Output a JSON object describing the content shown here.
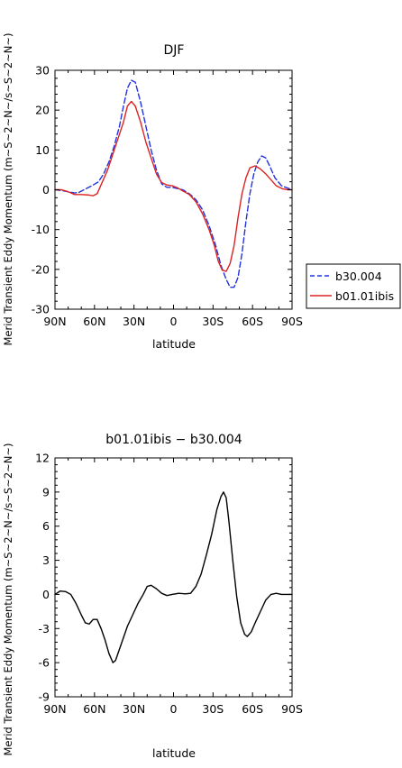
{
  "chart_data": [
    {
      "type": "line",
      "title": "DJF",
      "xlabel": "latitude",
      "ylabel": "Merid Transient Eddy Momentum (m~S~2~N~/s~S~2~N~)",
      "x_unit": "degrees latitude (positive = N, negative = S)",
      "xlim": [
        90,
        -90
      ],
      "ylim": [
        -30,
        30
      ],
      "xticks": [
        90,
        60,
        30,
        0,
        -30,
        -60,
        -90
      ],
      "xtick_labels": [
        "90N",
        "60N",
        "30N",
        "0",
        "30S",
        "60S",
        "90S"
      ],
      "yticks": [
        -30,
        -20,
        -10,
        0,
        10,
        20,
        30
      ],
      "ytick_labels": [
        "-30",
        "-20",
        "-10",
        "0",
        "10",
        "20",
        "30"
      ],
      "legend_position": "right",
      "series": [
        {
          "name": "b30.004",
          "color": "#2233dd",
          "style": "dashed",
          "points": [
            [
              90,
              0
            ],
            [
              85,
              -0.2
            ],
            [
              80,
              -0.5
            ],
            [
              75,
              -0.8
            ],
            [
              72,
              -0.7
            ],
            [
              68,
              0
            ],
            [
              62,
              1
            ],
            [
              57,
              2
            ],
            [
              53,
              4
            ],
            [
              49,
              7
            ],
            [
              45,
              11
            ],
            [
              41,
              16
            ],
            [
              38,
              21
            ],
            [
              35,
              25.5
            ],
            [
              32,
              27.5
            ],
            [
              29,
              27
            ],
            [
              25,
              22
            ],
            [
              21,
              16
            ],
            [
              17,
              10
            ],
            [
              13,
              5
            ],
            [
              9,
              1.5
            ],
            [
              5,
              0.6
            ],
            [
              1,
              0.6
            ],
            [
              -3,
              0.3
            ],
            [
              -7,
              0
            ],
            [
              -12,
              -1
            ],
            [
              -17,
              -2.5
            ],
            [
              -22,
              -5
            ],
            [
              -27,
              -9
            ],
            [
              -32,
              -14
            ],
            [
              -36,
              -19
            ],
            [
              -40,
              -22.5
            ],
            [
              -43,
              -24.5
            ],
            [
              -46,
              -24.5
            ],
            [
              -49,
              -22
            ],
            [
              -52,
              -16
            ],
            [
              -55,
              -8
            ],
            [
              -58,
              -1
            ],
            [
              -61,
              4
            ],
            [
              -64,
              7
            ],
            [
              -67,
              8.5
            ],
            [
              -70,
              8
            ],
            [
              -73,
              6
            ],
            [
              -77,
              3
            ],
            [
              -82,
              1
            ],
            [
              -86,
              0.5
            ],
            [
              -90,
              0
            ]
          ]
        },
        {
          "name": "b01.01ibis",
          "color": "#dd2222",
          "style": "solid",
          "points": [
            [
              90,
              0
            ],
            [
              85,
              0
            ],
            [
              80,
              -0.5
            ],
            [
              75,
              -1.2
            ],
            [
              70,
              -1.2
            ],
            [
              65,
              -1.3
            ],
            [
              61,
              -1.5
            ],
            [
              58,
              -1
            ],
            [
              54,
              2
            ],
            [
              50,
              5
            ],
            [
              46,
              9
            ],
            [
              42,
              13
            ],
            [
              38,
              17
            ],
            [
              35,
              21
            ],
            [
              32,
              22.2
            ],
            [
              29,
              21
            ],
            [
              25,
              17
            ],
            [
              21,
              12
            ],
            [
              17,
              8
            ],
            [
              13,
              4
            ],
            [
              9,
              1.8
            ],
            [
              5,
              1.2
            ],
            [
              1,
              1
            ],
            [
              -3,
              0.5
            ],
            [
              -7,
              -0.3
            ],
            [
              -12,
              -1.2
            ],
            [
              -17,
              -3
            ],
            [
              -22,
              -6
            ],
            [
              -27,
              -10
            ],
            [
              -31,
              -14
            ],
            [
              -34,
              -18
            ],
            [
              -37,
              -20.2
            ],
            [
              -40,
              -20.5
            ],
            [
              -43,
              -18.5
            ],
            [
              -46,
              -14
            ],
            [
              -49,
              -7
            ],
            [
              -52,
              -1
            ],
            [
              -55,
              3
            ],
            [
              -58,
              5.5
            ],
            [
              -62,
              6
            ],
            [
              -66,
              5.2
            ],
            [
              -70,
              4
            ],
            [
              -74,
              2.5
            ],
            [
              -78,
              1
            ],
            [
              -83,
              0.2
            ],
            [
              -87,
              0
            ],
            [
              -90,
              0
            ]
          ]
        }
      ]
    },
    {
      "type": "line",
      "title": "b01.01ibis − b30.004",
      "xlabel": "latitude",
      "ylabel": "Merid Transient Eddy Momentum (m~S~2~N~/s~S~2~N~)",
      "x_unit": "degrees latitude (positive = N, negative = S)",
      "xlim": [
        90,
        -90
      ],
      "ylim": [
        -9,
        12
      ],
      "xticks": [
        90,
        60,
        30,
        0,
        -30,
        -60,
        -90
      ],
      "xtick_labels": [
        "90N",
        "60N",
        "30N",
        "0",
        "30S",
        "60S",
        "90S"
      ],
      "yticks": [
        -9,
        -6,
        -3,
        0,
        3,
        6,
        9,
        12
      ],
      "ytick_labels": [
        "-9",
        "-6",
        "-3",
        "0",
        "3",
        "6",
        "9",
        "12"
      ],
      "series": [
        {
          "color": "#000000",
          "style": "solid",
          "points": [
            [
              90,
              0
            ],
            [
              86,
              0.3
            ],
            [
              82,
              0.25
            ],
            [
              78,
              0
            ],
            [
              74,
              -0.8
            ],
            [
              70,
              -1.8
            ],
            [
              67,
              -2.5
            ],
            [
              64,
              -2.6
            ],
            [
              61,
              -2.2
            ],
            [
              58,
              -2.2
            ],
            [
              55,
              -3
            ],
            [
              52,
              -4
            ],
            [
              49,
              -5.2
            ],
            [
              46,
              -6
            ],
            [
              44,
              -5.8
            ],
            [
              41,
              -4.8
            ],
            [
              38,
              -3.8
            ],
            [
              35,
              -2.8
            ],
            [
              31,
              -1.8
            ],
            [
              27,
              -0.8
            ],
            [
              23,
              0
            ],
            [
              20,
              0.7
            ],
            [
              17,
              0.8
            ],
            [
              13,
              0.5
            ],
            [
              9,
              0.1
            ],
            [
              5,
              -0.1
            ],
            [
              1,
              0
            ],
            [
              -4,
              0.1
            ],
            [
              -9,
              0.05
            ],
            [
              -13,
              0.1
            ],
            [
              -17,
              0.7
            ],
            [
              -21,
              1.8
            ],
            [
              -25,
              3.5
            ],
            [
              -29,
              5.3
            ],
            [
              -33,
              7.5
            ],
            [
              -36,
              8.6
            ],
            [
              -38,
              9
            ],
            [
              -40,
              8.5
            ],
            [
              -42,
              6.5
            ],
            [
              -45,
              3
            ],
            [
              -48,
              -0.2
            ],
            [
              -51,
              -2.5
            ],
            [
              -54,
              -3.5
            ],
            [
              -56,
              -3.7
            ],
            [
              -59,
              -3.3
            ],
            [
              -62,
              -2.5
            ],
            [
              -66,
              -1.5
            ],
            [
              -70,
              -0.5
            ],
            [
              -74,
              0
            ],
            [
              -78,
              0.1
            ],
            [
              -82,
              0
            ],
            [
              -86,
              0
            ],
            [
              -90,
              0
            ]
          ]
        }
      ]
    }
  ]
}
